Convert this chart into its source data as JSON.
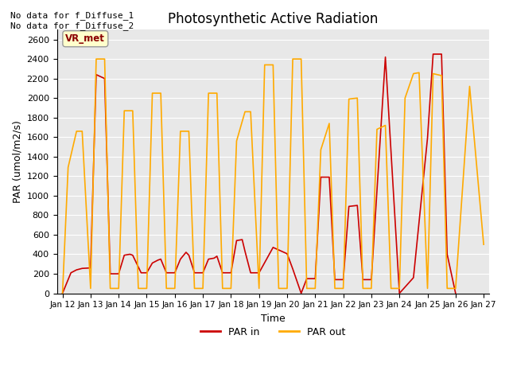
{
  "title": "Photosynthetic Active Radiation",
  "xlabel": "Time",
  "ylabel": "PAR (umol/m2/s)",
  "annotation_text": "No data for f_Diffuse_1\nNo data for f_Diffuse_2",
  "legend_label_text": "VR_met",
  "background_color": "#e8e8e8",
  "ylim": [
    0,
    2700
  ],
  "yticks": [
    0,
    200,
    400,
    600,
    800,
    1000,
    1200,
    1400,
    1600,
    1800,
    2000,
    2200,
    2400,
    2600
  ],
  "xtick_labels": [
    "Jan 12",
    "Jan 13",
    "Jan 14",
    "Jan 15",
    "Jan 16",
    "Jan 17",
    "Jan 18",
    "Jan 19",
    "Jan 20",
    "Jan 21",
    "Jan 22",
    "Jan 23",
    "Jan 24",
    "Jan 25",
    "Jan 26",
    "Jan 27"
  ],
  "par_in_color": "#cc0000",
  "par_out_color": "#ffaa00",
  "par_in_label": "PAR in",
  "par_out_label": "PAR out",
  "x_par_in": [
    0.0,
    0.3,
    0.5,
    0.7,
    1.0,
    1.0,
    1.2,
    1.5,
    1.7,
    2.0,
    2.0,
    2.2,
    2.4,
    2.5,
    2.6,
    2.8,
    3.0,
    3.0,
    3.2,
    3.4,
    3.5,
    3.7,
    4.0,
    4.0,
    4.2,
    4.4,
    4.5,
    4.7,
    5.0,
    5.0,
    5.2,
    5.4,
    5.5,
    5.7,
    6.0,
    6.0,
    6.2,
    6.4,
    6.5,
    6.7,
    7.0,
    7.0,
    7.5,
    8.0,
    8.0,
    8.2,
    8.5,
    8.7,
    9.0,
    9.0,
    9.2,
    9.5,
    9.7,
    10.0,
    10.0,
    10.2,
    10.5,
    10.7,
    11.0,
    11.0,
    11.5,
    12.0,
    12.0,
    12.5,
    13.0,
    13.0,
    13.2,
    13.5,
    13.7,
    14.0
  ],
  "y_par_in": [
    0,
    210,
    240,
    255,
    260,
    260,
    2240,
    2200,
    200,
    200,
    200,
    390,
    400,
    390,
    330,
    210,
    210,
    210,
    310,
    340,
    350,
    210,
    210,
    210,
    350,
    420,
    390,
    210,
    210,
    210,
    350,
    360,
    380,
    210,
    210,
    210,
    540,
    550,
    430,
    210,
    210,
    210,
    470,
    405,
    405,
    250,
    0,
    150,
    150,
    150,
    1190,
    1190,
    140,
    140,
    140,
    890,
    900,
    140,
    140,
    140,
    2420,
    0,
    0,
    160,
    1590,
    1590,
    2450,
    2450,
    400,
    0
  ],
  "x_par_out": [
    0.0,
    0.2,
    0.5,
    0.7,
    1.0,
    1.0,
    1.2,
    1.5,
    1.7,
    2.0,
    2.0,
    2.2,
    2.5,
    2.7,
    3.0,
    3.0,
    3.2,
    3.5,
    3.7,
    4.0,
    4.0,
    4.2,
    4.5,
    4.7,
    5.0,
    5.0,
    5.2,
    5.5,
    5.7,
    6.0,
    6.0,
    6.2,
    6.5,
    6.7,
    7.0,
    7.0,
    7.2,
    7.5,
    7.7,
    8.0,
    8.0,
    8.2,
    8.5,
    8.7,
    9.0,
    9.0,
    9.2,
    9.5,
    9.7,
    10.0,
    10.0,
    10.2,
    10.5,
    10.7,
    11.0,
    11.0,
    11.2,
    11.5,
    11.7,
    12.0,
    12.0,
    12.2,
    12.5,
    12.7,
    13.0,
    13.0,
    13.2,
    13.5,
    13.7,
    14.0,
    14.0,
    14.5,
    15.0
  ],
  "y_par_out": [
    0,
    1290,
    1660,
    1660,
    50,
    50,
    2400,
    2400,
    50,
    50,
    50,
    1870,
    1870,
    50,
    50,
    50,
    2050,
    2050,
    50,
    50,
    50,
    1660,
    1660,
    50,
    50,
    50,
    2050,
    2050,
    50,
    50,
    50,
    1560,
    1860,
    1860,
    50,
    50,
    2340,
    2340,
    50,
    50,
    50,
    2400,
    2400,
    50,
    50,
    50,
    1470,
    1740,
    50,
    50,
    50,
    1990,
    2000,
    50,
    50,
    50,
    1680,
    1720,
    50,
    50,
    50,
    2000,
    2250,
    2260,
    50,
    50,
    2250,
    2230,
    50,
    50,
    50,
    2120,
    500
  ]
}
